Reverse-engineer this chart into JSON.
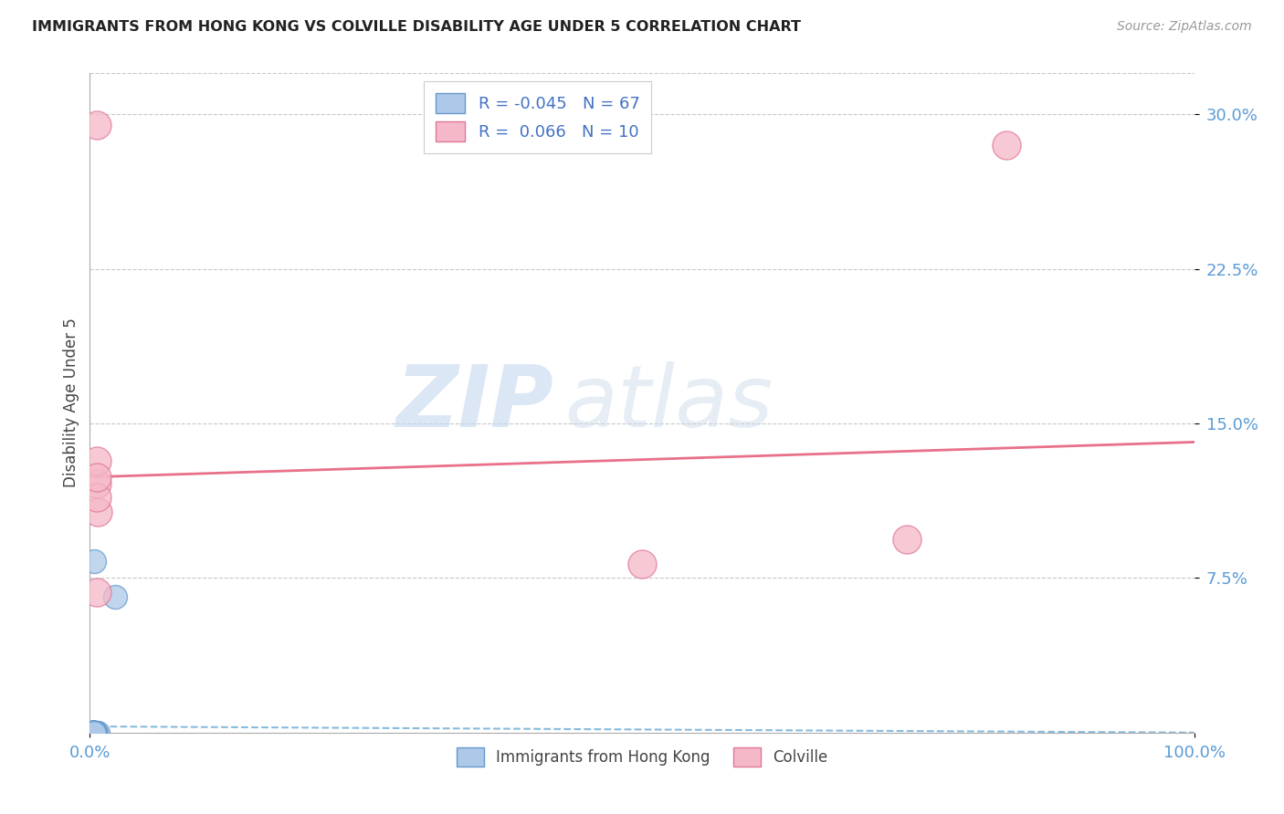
{
  "title": "IMMIGRANTS FROM HONG KONG VS COLVILLE DISABILITY AGE UNDER 5 CORRELATION CHART",
  "source": "Source: ZipAtlas.com",
  "ylabel": "Disability Age Under 5",
  "xlim": [
    0.0,
    1.0
  ],
  "ylim": [
    0.0,
    0.32
  ],
  "xtick_labels": [
    "0.0%",
    "100.0%"
  ],
  "xtick_positions": [
    0.0,
    1.0
  ],
  "ytick_labels": [
    "7.5%",
    "15.0%",
    "22.5%",
    "30.0%"
  ],
  "ytick_positions": [
    0.075,
    0.15,
    0.225,
    0.3
  ],
  "grid_color": "#c8c8c8",
  "background_color": "#ffffff",
  "watermark_zip": "ZIP",
  "watermark_atlas": "atlas",
  "blue_color": "#adc8e8",
  "blue_edge_color": "#6699cc",
  "pink_color": "#f5b8c8",
  "pink_edge_color": "#e07898",
  "blue_trend_color": "#88bbdd",
  "pink_trend_color": "#e8708a",
  "blue_r": "-0.045",
  "blue_n": "67",
  "pink_r": "0.066",
  "pink_n": "10",
  "legend_label_blue": "Immigrants from Hong Kong",
  "legend_label_pink": "Colville",
  "blue_scatter_x": [
    0.003,
    0.004,
    0.002,
    0.005,
    0.006,
    0.004,
    0.003,
    0.007,
    0.002,
    0.003,
    0.004,
    0.005,
    0.003,
    0.002,
    0.004,
    0.003,
    0.005,
    0.002,
    0.004,
    0.003,
    0.004,
    0.002,
    0.003,
    0.004,
    0.002,
    0.005,
    0.003,
    0.004,
    0.002,
    0.003,
    0.004,
    0.003,
    0.002,
    0.004,
    0.003,
    0.004,
    0.003,
    0.002,
    0.004,
    0.003,
    0.002,
    0.003,
    0.004,
    0.002,
    0.005,
    0.003,
    0.004,
    0.002,
    0.003,
    0.004,
    0.003,
    0.005,
    0.004,
    0.002,
    0.003,
    0.004,
    0.003,
    0.002,
    0.003,
    0.004,
    0.003,
    0.002,
    0.004,
    0.003,
    0.004,
    0.023,
    0.004
  ],
  "blue_scatter_y": [
    0.0,
    0.0,
    0.0,
    0.0,
    0.0,
    0.0,
    0.0,
    0.0,
    0.0,
    0.0,
    0.0,
    0.0,
    0.0,
    0.0,
    0.0,
    0.0,
    0.0,
    0.0,
    0.0,
    0.0,
    0.0,
    0.0,
    0.0,
    0.0,
    0.0,
    0.0,
    0.0,
    0.0,
    0.0,
    0.0,
    0.0,
    0.0,
    0.0,
    0.0,
    0.0,
    0.0,
    0.0,
    0.0,
    0.0,
    0.0,
    0.0,
    0.0,
    0.0,
    0.0,
    0.0,
    0.0,
    0.0,
    0.0,
    0.0,
    0.0,
    0.0,
    0.0,
    0.0,
    0.0,
    0.0,
    0.0,
    0.0,
    0.0,
    0.0,
    0.0,
    0.0,
    0.0,
    0.0,
    0.0,
    0.083,
    0.066,
    0.0
  ],
  "pink_scatter_x": [
    0.006,
    0.007,
    0.006,
    0.006,
    0.5,
    0.74,
    0.83,
    0.006,
    0.006,
    0.006
  ],
  "pink_scatter_y": [
    0.121,
    0.107,
    0.295,
    0.114,
    0.082,
    0.094,
    0.285,
    0.132,
    0.124,
    0.068
  ],
  "blue_trend_x": [
    0.0,
    1.0
  ],
  "blue_trend_y": [
    0.003,
    0.0
  ],
  "pink_trend_x": [
    0.0,
    1.0
  ],
  "pink_trend_y": [
    0.124,
    0.141
  ]
}
